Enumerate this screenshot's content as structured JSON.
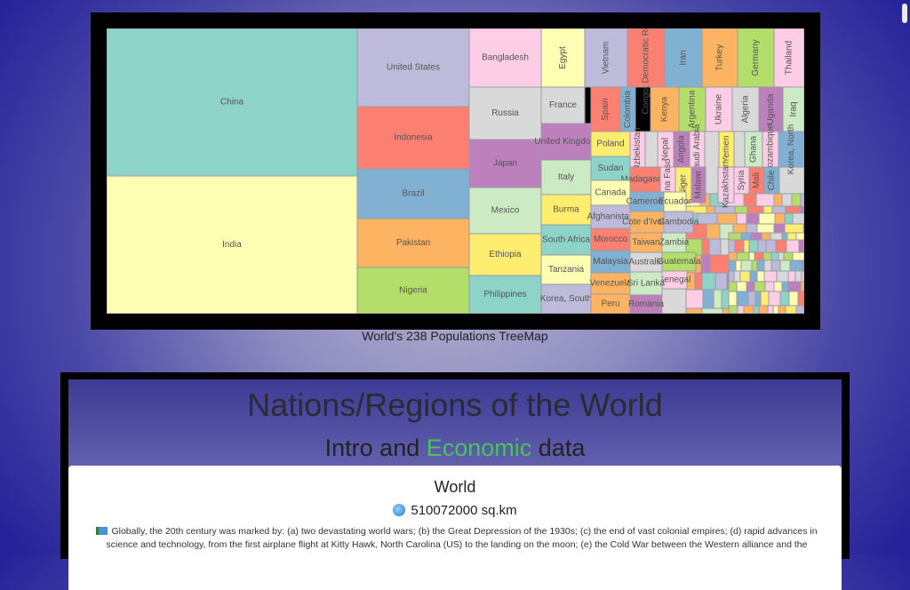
{
  "treemap": {
    "caption": "World's 238 Populations TreeMap"
  },
  "chart_data": {
    "type": "treemap",
    "title": "World's 238 Populations TreeMap",
    "labeled_countries": [
      "China",
      "India",
      "United States",
      "Indonesia",
      "Brazil",
      "Pakistan",
      "Nigeria",
      "Bangladesh",
      "Russia",
      "Japan",
      "Mexico",
      "Ethiopia",
      "Philippines",
      "Egypt",
      "France",
      "United Kingdom",
      "Italy",
      "Burma",
      "South Africa",
      "Tanzania",
      "Korea, South",
      "Vietnam",
      "Congo, Democratic Republic",
      "Iran",
      "Turkey",
      "Germany",
      "Thailand",
      "Spain",
      "Colombia",
      "Kenya",
      "Argentina",
      "Ukraine",
      "Algeria",
      "Uganda",
      "Iraq",
      "Poland",
      "Uzbekistan",
      "Nepal",
      "Angola",
      "Saudi Arabia",
      "Yemen",
      "Ghana",
      "Mozambique",
      "Korea, North",
      "Sudan",
      "Madagascar",
      "Burkina Faso",
      "Niger",
      "Malawi",
      "Kazakhstan",
      "Syria",
      "Mali",
      "Chile",
      "Canada",
      "Cameroon",
      "Ecuador",
      "Afghanistan",
      "Cote d'Ivoire",
      "Cambodia",
      "Morocco",
      "Taiwan",
      "Zambia",
      "Malaysia",
      "Australia",
      "Guatemala",
      "Senegal",
      "Venezuela",
      "Sri Lanka",
      "Peru",
      "Romania"
    ]
  },
  "panel": {
    "title": "Nations/Regions of the World",
    "subtitle_pre": "Intro and ",
    "subtitle_accent": "Economic",
    "subtitle_post": " data",
    "card": {
      "name": "World",
      "area": "510072000 sq.km",
      "description": "Globally, the 20th century was marked by: (a) two devastating world wars; (b) the Great Depression of the 1930s; (c) the end of vast colonial empires; (d) rapid advances in science and technology, from the first airplane flight at Kitty Hawk, North Carolina (US) to the landing on the moon; (e) the Cold War between the Western alliance and the"
    }
  },
  "colors": {
    "green_accent": "#4cc15c",
    "frame": "#000000"
  }
}
